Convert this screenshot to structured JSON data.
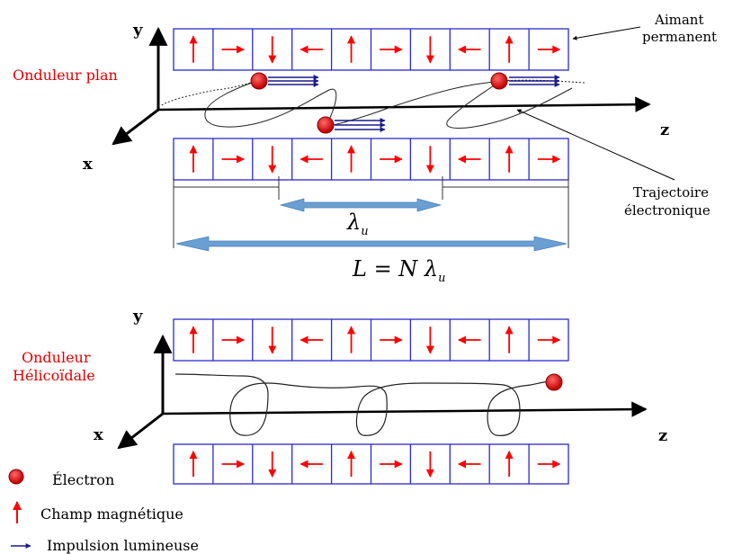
{
  "top": {
    "title": "Onduleur plan",
    "axis_y": "y",
    "axis_x": "x",
    "axis_z": "z",
    "magnet_label_line1": "Aimant",
    "magnet_label_line2": "permanent",
    "trajectory_label_line1": "Trajectoire",
    "trajectory_label_line2": "électronique",
    "period_label": "λ",
    "period_subscript": "u",
    "length_label": "L = N λ",
    "length_subscript": "u",
    "magnet_orientation_sequence": [
      "up",
      "right",
      "down",
      "left",
      "up",
      "right",
      "down",
      "left",
      "up",
      "right"
    ]
  },
  "bottom": {
    "title_line1": "Onduleur",
    "title_line2": "Hélicoïdale",
    "axis_y": "y",
    "axis_x": "x",
    "axis_z": "z",
    "magnet_orientation_sequence": [
      "up",
      "right",
      "down",
      "left",
      "up",
      "right",
      "down",
      "left",
      "up",
      "right"
    ]
  },
  "legend": {
    "electron": "Électron",
    "field": "Champ magnétique",
    "pulse": "Impulsion lumineuse"
  },
  "colors": {
    "magnet_border": "#2a2acc",
    "field_arrow": "#ff0000",
    "electron": "#e01010",
    "pulse": "#1a1a8c",
    "wavelength_arrow": "#6a9fd4",
    "title_red": "#e00000"
  }
}
